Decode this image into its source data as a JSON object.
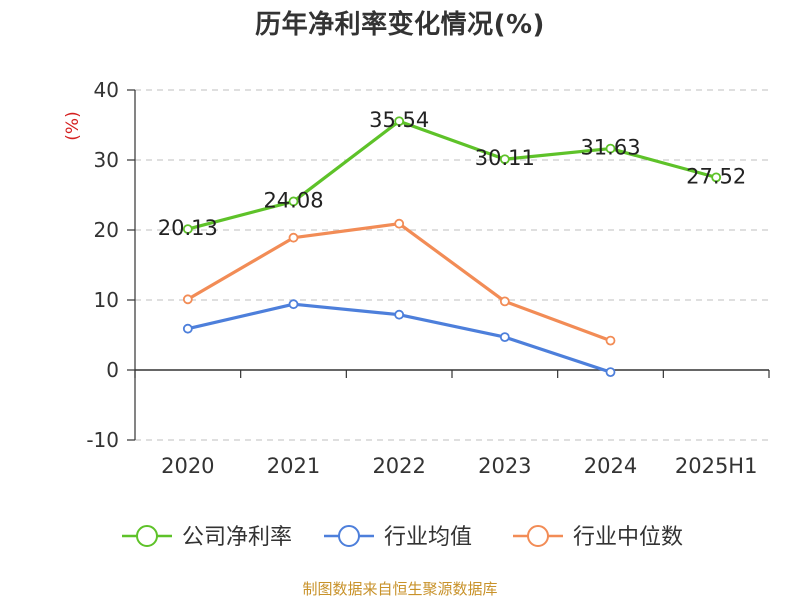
{
  "chart_data": {
    "type": "line",
    "title": "历年净利率变化情况(%)",
    "ylabel": "(%)",
    "categories": [
      "2020",
      "2021",
      "2022",
      "2023",
      "2024",
      "2025H1"
    ],
    "ylim": [
      -10,
      40
    ],
    "yticks": [
      "40",
      "30",
      "20",
      "10",
      "0",
      "-10"
    ],
    "grid": true,
    "legend_position": "bottom",
    "series": [
      {
        "name": "公司净利率",
        "color": "#5ec229",
        "values": [
          20.13,
          24.08,
          35.54,
          30.11,
          31.63,
          27.52
        ],
        "labels": [
          "20.13",
          "24.08",
          "35.54",
          "30.11",
          "31.63",
          "27.52"
        ]
      },
      {
        "name": "行业均值",
        "color": "#4d7fdb",
        "values": [
          5.9,
          9.4,
          7.9,
          4.7,
          -0.3,
          null
        ]
      },
      {
        "name": "行业中位数",
        "color": "#f28c56",
        "values": [
          10.1,
          18.9,
          20.9,
          9.8,
          4.2,
          null
        ]
      }
    ]
  },
  "footer": {
    "source": "制图数据来自恒生聚源数据库"
  }
}
